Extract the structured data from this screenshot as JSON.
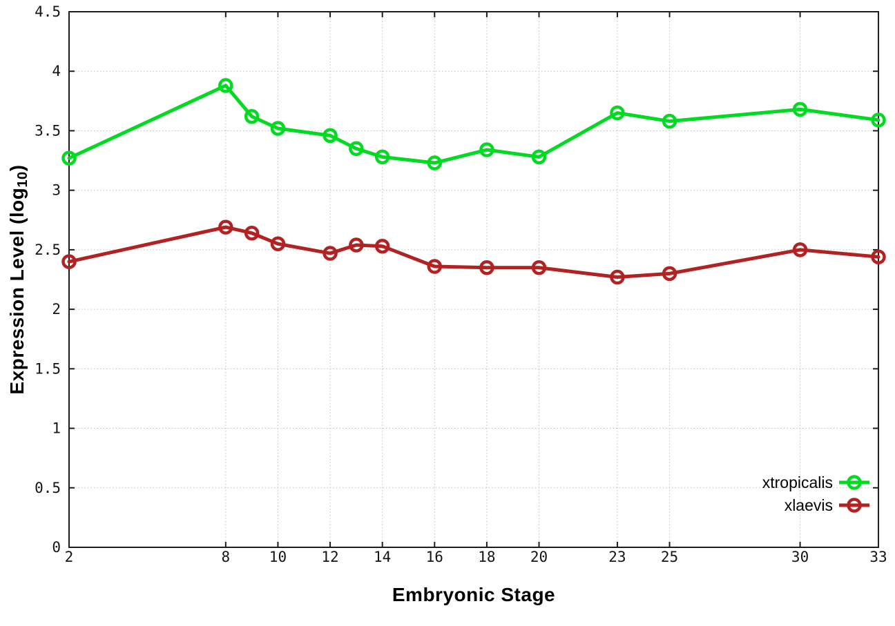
{
  "figure": {
    "background": "#ffffff",
    "border_color": "#1c1c1c",
    "grid_color": "#bdbdbd",
    "tick_text_color": "#141414"
  },
  "y_axis": {
    "title_main": "Expression Level (log",
    "title_sub": "10",
    "title_close": ")",
    "tick_labels": [
      "0",
      "0.5",
      "1",
      "1.5",
      "2",
      "2.5",
      "3",
      "3.5",
      "4",
      "4.5"
    ]
  },
  "x_axis": {
    "title": "Embryonic Stage",
    "tick_labels": [
      "2",
      "8",
      "10",
      "12",
      "14",
      "16",
      "18",
      "20",
      "23",
      "25",
      "30",
      "33"
    ]
  },
  "legend": {
    "items": [
      {
        "label": "xtropicalis",
        "color": "#00da20"
      },
      {
        "label": "xlaevis",
        "color": "#b22222"
      }
    ]
  },
  "chart_data": {
    "type": "line",
    "title": "",
    "xlabel": "Embryonic Stage",
    "ylabel": "Expression Level (log10)",
    "x": [
      2,
      8,
      9,
      10,
      12,
      13,
      14,
      16,
      18,
      20,
      23,
      25,
      30,
      33
    ],
    "series": [
      {
        "name": "xtropicalis",
        "color": "#00da20",
        "values": [
          3.27,
          3.88,
          3.62,
          3.52,
          3.46,
          3.35,
          3.28,
          3.23,
          3.34,
          3.28,
          3.65,
          3.58,
          3.68,
          3.59
        ]
      },
      {
        "name": "xlaevis",
        "color": "#b22222",
        "values": [
          2.4,
          2.69,
          2.64,
          2.55,
          2.47,
          2.54,
          2.53,
          2.36,
          2.35,
          2.35,
          2.27,
          2.3,
          2.5,
          2.44
        ]
      }
    ],
    "xlim": [
      2,
      33
    ],
    "ylim": [
      0,
      4.5
    ],
    "xticks": [
      2,
      8,
      10,
      12,
      14,
      16,
      18,
      20,
      23,
      25,
      30,
      33
    ],
    "yticks": [
      0,
      0.5,
      1,
      1.5,
      2,
      2.5,
      3,
      3.5,
      4,
      4.5
    ],
    "grid": true,
    "marker": "open-circle",
    "legend_position": "bottom-right-inside"
  }
}
